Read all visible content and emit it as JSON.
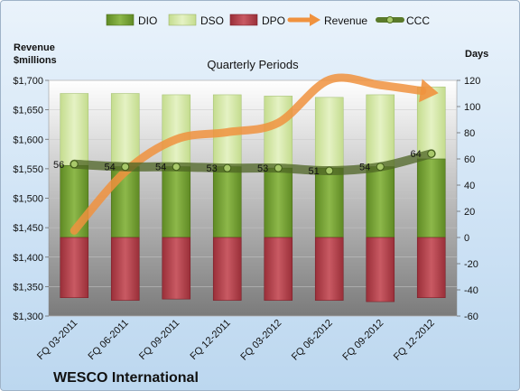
{
  "chart_data": {
    "type": "bar",
    "subtitle": "Quarterly Periods",
    "company": "WESCO International",
    "left_axis_title": [
      "Revenue",
      "$millions"
    ],
    "right_axis_title": "Days",
    "categories": [
      "FQ 03-2011",
      "FQ 06-2011",
      "FQ 09-2011",
      "FQ 12-2011",
      "FQ 03-2012",
      "FQ 06-2012",
      "FQ 09-2012",
      "FQ 12-2012"
    ],
    "left_axis": {
      "min": 1300,
      "max": 1700,
      "step": 50,
      "tick_labels": [
        "$1,300",
        "$1,350",
        "$1,400",
        "$1,450",
        "$1,500",
        "$1,550",
        "$1,600",
        "$1,650",
        "$1,700"
      ]
    },
    "right_axis": {
      "min": -60,
      "max": 120,
      "step": 20,
      "tick_labels": [
        "-60",
        "-40",
        "-20",
        "0",
        "20",
        "40",
        "60",
        "80",
        "100",
        "120"
      ]
    },
    "series": [
      {
        "name": "DIO",
        "axis": "right",
        "kind": "stacked-bar",
        "color": "#77a033",
        "values": [
          55,
          54,
          54,
          54,
          53,
          53,
          54,
          60
        ]
      },
      {
        "name": "DSO",
        "axis": "right",
        "kind": "stacked-bar",
        "color": "#d5e8a6",
        "values": [
          55,
          56,
          55,
          55,
          55,
          54,
          55,
          55
        ]
      },
      {
        "name": "DPO",
        "axis": "right",
        "kind": "negative-bar",
        "color": "#b5404a",
        "values": [
          -46,
          -48,
          -47,
          -48,
          -48,
          -48,
          -49,
          -46
        ]
      },
      {
        "name": "Revenue",
        "axis": "left",
        "kind": "line",
        "color": "#f0923e",
        "values": [
          1445,
          1545,
          1600,
          1612,
          1628,
          1701,
          1692,
          1680
        ]
      },
      {
        "name": "CCC",
        "axis": "right",
        "kind": "line",
        "color": "#5a7a2a",
        "values": [
          56,
          54,
          54,
          53,
          53,
          51,
          54,
          64
        ]
      }
    ],
    "ccc_labels": [
      "56",
      "54",
      "54",
      "53",
      "53",
      "51",
      "54",
      "64"
    ],
    "legend": [
      "DIO",
      "DSO",
      "DPO",
      "Revenue",
      "CCC"
    ],
    "legend_position": "top"
  }
}
